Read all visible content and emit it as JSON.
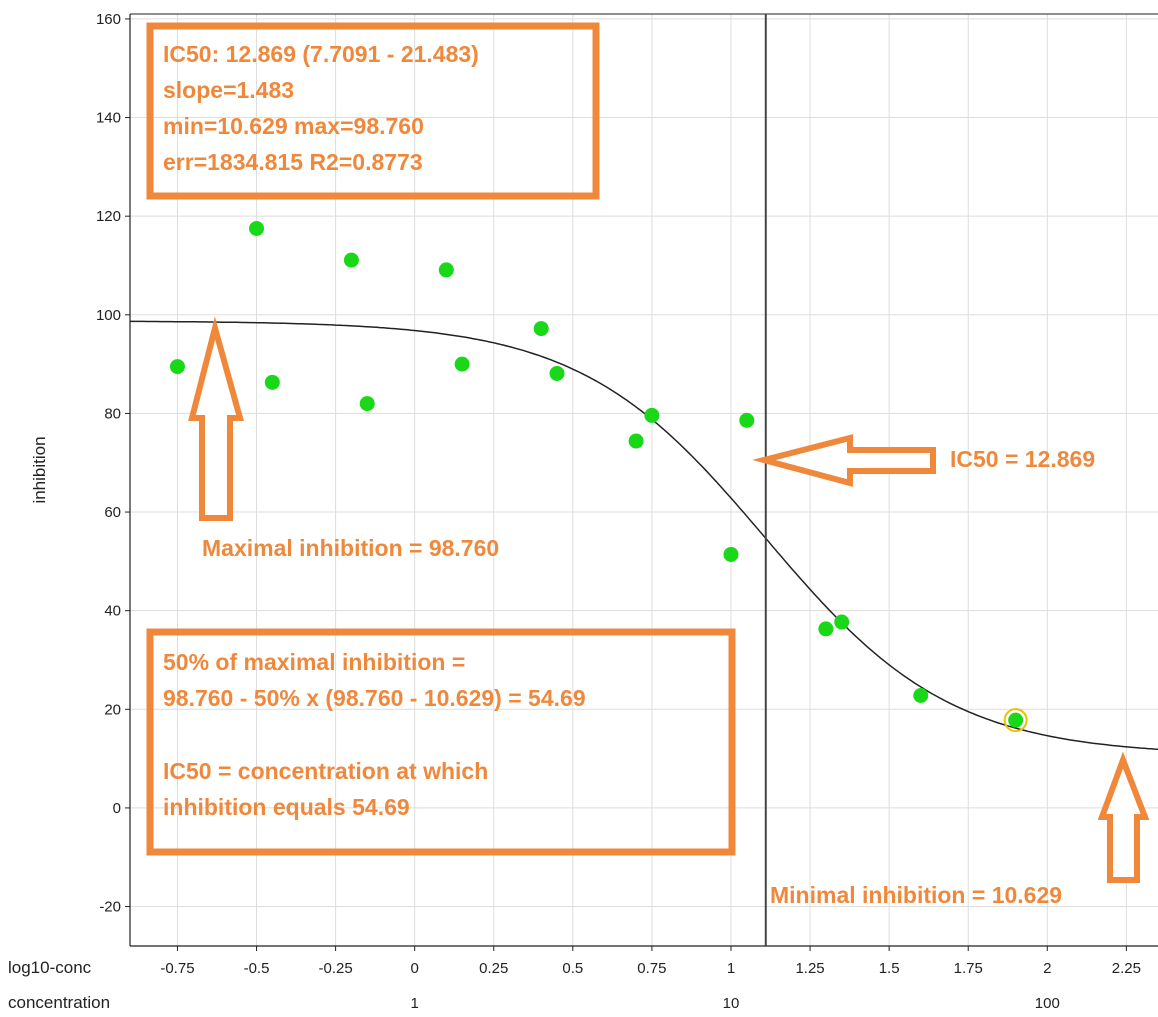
{
  "chart_data": {
    "type": "scatter",
    "ylabel": "inhibition",
    "xlim": [
      -0.9,
      2.35
    ],
    "ylim": [
      -28,
      161
    ],
    "x_ticks": [
      -0.75,
      -0.5,
      -0.25,
      0,
      0.25,
      0.5,
      0.75,
      1,
      1.25,
      1.5,
      1.75,
      2,
      2.25
    ],
    "x_tick_labels": [
      "-0.75",
      "-0.5",
      "-0.25",
      "0",
      "0.25",
      "0.5",
      "0.75",
      "1",
      "1.25",
      "1.5",
      "1.75",
      "2",
      "2.25"
    ],
    "y_ticks": [
      -20,
      0,
      20,
      40,
      60,
      80,
      100,
      120,
      140,
      160
    ],
    "y_tick_labels": [
      "-20",
      "0",
      "20",
      "40",
      "60",
      "80",
      "100",
      "120",
      "140",
      "160"
    ],
    "x_axis_row_labels": [
      "log10-conc",
      "concentration"
    ],
    "concentration_ticks": [
      {
        "log10": 0,
        "label": "1"
      },
      {
        "log10": 1,
        "label": "10"
      },
      {
        "log10": 2,
        "label": "100"
      }
    ],
    "grid": true,
    "points": [
      {
        "x": -0.75,
        "y": 89.5
      },
      {
        "x": -0.5,
        "y": 117.5
      },
      {
        "x": -0.45,
        "y": 86.3
      },
      {
        "x": -0.2,
        "y": 111.1
      },
      {
        "x": -0.15,
        "y": 82.0
      },
      {
        "x": 0.1,
        "y": 109.1
      },
      {
        "x": 0.15,
        "y": 90.0
      },
      {
        "x": 0.4,
        "y": 97.2
      },
      {
        "x": 0.45,
        "y": 88.1
      },
      {
        "x": 0.7,
        "y": 74.4
      },
      {
        "x": 0.75,
        "y": 79.6
      },
      {
        "x": 1.0,
        "y": 51.4
      },
      {
        "x": 1.05,
        "y": 78.6
      },
      {
        "x": 1.3,
        "y": 36.3
      },
      {
        "x": 1.35,
        "y": 37.7
      },
      {
        "x": 1.6,
        "y": 22.8
      },
      {
        "x": 1.9,
        "y": 17.8,
        "highlighted": true
      }
    ],
    "fit": {
      "min": 10.629,
      "max": 98.76,
      "ic50": 12.869,
      "slope": 1.483
    },
    "ic50_log10": 1.11,
    "colors": {
      "points": "#18d818",
      "fit_line": "#222222",
      "ic50_line": "#444444",
      "annotation": "#f0883c",
      "highlight_ring": "#f0c000",
      "grid": "#dddddd"
    }
  },
  "annotations": {
    "stats_box": [
      "IC50: 12.869 (7.7091 - 21.483)",
      "slope=1.483",
      "min=10.629 max=98.760",
      "err=1834.815 R2=0.8773"
    ],
    "max_label": "Maximal inhibition = 98.760",
    "ic50_label": "IC50 = 12.869",
    "min_label": "Minimal inhibition = 10.629",
    "explain_box": [
      "50% of maximal inhibition =",
      "98.760 - 50% x (98.760 - 10.629) = 54.69",
      "",
      "IC50 = concentration at which",
      "inhibition equals 54.69"
    ]
  }
}
